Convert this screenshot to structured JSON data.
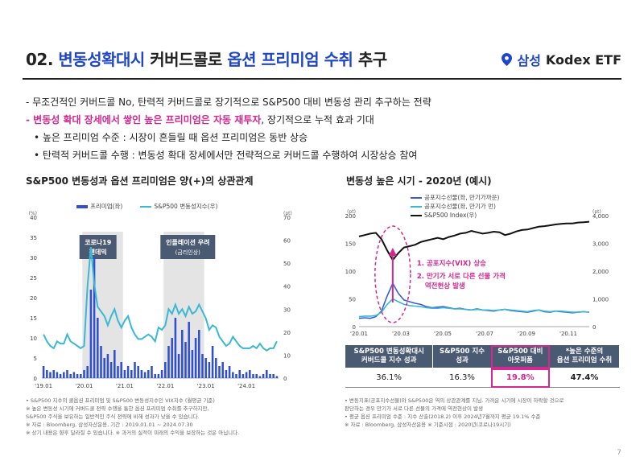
{
  "header": {
    "title_num": "02.",
    "title_a": "변동성확대시",
    "title_b": "커버드콜로",
    "title_c": "옵션 프리미엄 수취",
    "title_d": "추구",
    "brand_icon": "location-pin-icon",
    "brand_company": "삼성",
    "brand_name": "Kodex ETF",
    "accent": "#1f46c8"
  },
  "bullets": {
    "b1": "- 무조건적인 커버드콜 No, 탄력적 커버드콜로 장기적으로 S&P500 대비 변동성 관리 추구하는 전략",
    "b2_pink": "- 변동성 확대 장세에서 쌓인 높은 프리미엄은 자동 재투자",
    "b2_rest": ", 장기적으로 누적 효과 기대",
    "b3": "• 높은 프리미엄 수준 : 시장이 흔들릴 때 옵션 프리미엄은 동반 상승",
    "b4": "• 탄력적 커버드콜 수행 : 변동성 확대 장세에서만 전략적으로 커버드콜 수행하여 시장상승 참여",
    "pink": "#d4278f"
  },
  "left_section": {
    "title": "S&P500 변동성과 옵션 프리미엄은 양(+)의 상관관계",
    "legend_bar": "프리미엄(좌)",
    "legend_line": "S&P500 변동성지수(우)",
    "annot1_line1": "코로나19",
    "annot1_line2": "팬데믹",
    "annot2_line1": "인플레이션 우려",
    "annot2_line2": "(금리인상)",
    "notes": [
      "• S&P500 지수의 콜옵션 프리미엄 및 S&P500 변동성지수인 VIX지수 (월평균 기준)",
      "※ 높은 변동성 시기에 커버드콜 전략 수행을 통한 옵션 프리미엄 수취를 추구하지만,",
      "   S&P500 주식을 보유하는 일반적인 주식 전략에 비해 성과가 낮을 수 있습니다.",
      "※ 자료 : Bloomberg, 삼성자산운용, 기간 : 2019.01.01 ~ 2024.07.30",
      "※ 상기 내용은 향후 달라질 수 있습니다.  ※ 과거의 실적이 미래의 수익을 보장하는 것은 아닙니다."
    ]
  },
  "right_section": {
    "title": "변동성 높은 시기 - 2020년 (예시)",
    "legend1": "공포지수선물(좌, 만기가까운)",
    "legend2": "공포지수선물(좌, 만기가 먼)",
    "legend3": "S&P500 Index(우)",
    "annot1": "1. 공포지수(VIX) 상승",
    "annot2_line1": "2. 만기가 서로 다른 선물 가격",
    "annot2_line2": "역전현상 발생",
    "notes": [
      "• 변동지표(공포지수선물)와 S&P500은 역의 상관관계를 지님. 가까운 시기에 시장이 하락할 것으로",
      "  판단하는 경우 만기가 서로 다른 선물의 가격에 역전현상이 발생",
      "• 평균 옵션 프리미엄 수준 : 지수 산출(2018.2) 이후 2024년7월까지 평균 19.1% 수준",
      "※ 자료 : Bloomberg, 삼성자산운용  ※ 기준시점 : 2020년(코로나19시기)"
    ]
  },
  "table": {
    "headers": [
      "S&P500 변동성확대시\n커버드콜 지수 성과",
      "S&P500 지수\n성과",
      "S&P500 대비\n아웃퍼폼",
      "*높은 수준의\n옵션 프리미엄 수취"
    ],
    "values": [
      "36.1%",
      "16.3%",
      "19.8%",
      "47.4%"
    ]
  },
  "page_number": "7",
  "chart_data": [
    {
      "type": "bar",
      "title": "S&P500 변동성과 옵션 프리미엄은 양(+)의 상관관계",
      "y_left_unit": "(%)",
      "y_right_unit": "(pt)",
      "ylim_left": [
        0,
        40
      ],
      "ylim_right": [
        0,
        70
      ],
      "yticks_left": [
        "0",
        "5",
        "10",
        "15",
        "20",
        "25",
        "30",
        "35",
        "40"
      ],
      "yticks_right": [
        "0",
        "10",
        "20",
        "30",
        "40",
        "50",
        "60",
        "70"
      ],
      "xticks": [
        "'19.01",
        "'20.01",
        "'21.01",
        "'22.01",
        "'23.01",
        "'24.01"
      ],
      "series": [
        {
          "name": "프리미엄(좌)",
          "color": "#2f4fd0",
          "values": [
            3,
            2,
            1.5,
            2,
            1.5,
            1,
            1.5,
            2,
            1,
            1.5,
            1,
            1,
            2,
            3,
            22,
            30,
            15,
            8,
            5,
            6,
            4,
            7,
            3,
            4,
            2,
            3,
            2,
            4,
            3,
            2,
            1.5,
            2,
            3,
            1,
            1,
            2,
            4,
            8,
            10,
            15,
            6,
            12,
            9,
            14,
            7,
            10,
            12,
            6,
            5,
            4,
            8,
            5,
            3,
            4,
            2,
            3,
            1.5,
            1,
            2,
            1,
            1.5,
            2,
            1,
            1,
            0.5,
            1,
            2,
            1,
            1,
            0.5
          ]
        },
        {
          "name": "S&P500 변동성지수(우)",
          "color": "#3ab8d4",
          "values": [
            19,
            16,
            14,
            13,
            16,
            15,
            15,
            19,
            16,
            15,
            14,
            13,
            14,
            40,
            57,
            41,
            31,
            29,
            27,
            23,
            27,
            30,
            25,
            22,
            25,
            27,
            22,
            19,
            17,
            17,
            18,
            19,
            18,
            16,
            22,
            21,
            23,
            30,
            28,
            32,
            28,
            30,
            27,
            31,
            28,
            29,
            32,
            29,
            26,
            21,
            23,
            22,
            18,
            16,
            14,
            15,
            18,
            16,
            14,
            13,
            13,
            13,
            14,
            13,
            15,
            13,
            12,
            13,
            13,
            16
          ]
        }
      ],
      "shaded_periods": [
        "'20.01 ~ '21.01 코로나19 팬데믹",
        "'22.01 ~ '23.01 인플레이션 우려 (금리인상)"
      ]
    },
    {
      "type": "line",
      "title": "변동성 높은 시기 - 2020년 (예시)",
      "y_left_unit": "(pt)",
      "y_right_unit": "(pt)",
      "ylim_left": [
        0,
        200
      ],
      "ylim_right": [
        0,
        4000
      ],
      "yticks_left": [
        "0",
        "50",
        "100",
        "150",
        "200"
      ],
      "yticks_right": [
        "0",
        "1,000",
        "2,000",
        "3,000",
        "4,000"
      ],
      "xticks": [
        "'20.01",
        "'20.03",
        "'20.05",
        "'20.07",
        "'20.09",
        "'20.11"
      ],
      "series": [
        {
          "name": "공포지수선물(좌, 만기가까운)",
          "color": "#3a5bd6",
          "values": [
            15,
            16,
            15,
            18,
            28,
            55,
            78,
            60,
            48,
            45,
            42,
            40,
            36,
            34,
            35,
            36,
            34,
            32,
            33,
            31,
            30,
            32,
            30,
            29,
            28,
            30,
            31,
            29,
            28,
            27,
            26,
            28,
            30,
            27,
            26,
            28,
            27,
            26,
            25,
            26,
            27,
            26
          ]
        },
        {
          "name": "공포지수선물(좌, 만기가 먼)",
          "color": "#3ab8d4",
          "values": [
            18,
            19,
            19,
            20,
            26,
            40,
            50,
            45,
            40,
            38,
            37,
            36,
            34,
            33,
            33,
            34,
            33,
            32,
            32,
            31,
            30,
            31,
            30,
            30,
            29,
            30,
            31,
            30,
            29,
            28,
            27,
            29,
            30,
            28,
            27,
            28,
            28,
            27,
            26,
            26,
            27,
            26
          ]
        },
        {
          "name": "S&P500 Index(우)",
          "color": "#111111",
          "values": [
            3250,
            3300,
            3350,
            3380,
            3150,
            2750,
            2400,
            2650,
            2850,
            2900,
            2950,
            3050,
            3100,
            3150,
            3200,
            3150,
            3230,
            3280,
            3350,
            3380,
            3450,
            3400,
            3350,
            3380,
            3420,
            3400,
            3300,
            3350,
            3430,
            3480,
            3500,
            3550,
            3600,
            3620,
            3650,
            3680,
            3700,
            3720,
            3720,
            3750,
            3760,
            3780
          ]
        }
      ]
    }
  ]
}
